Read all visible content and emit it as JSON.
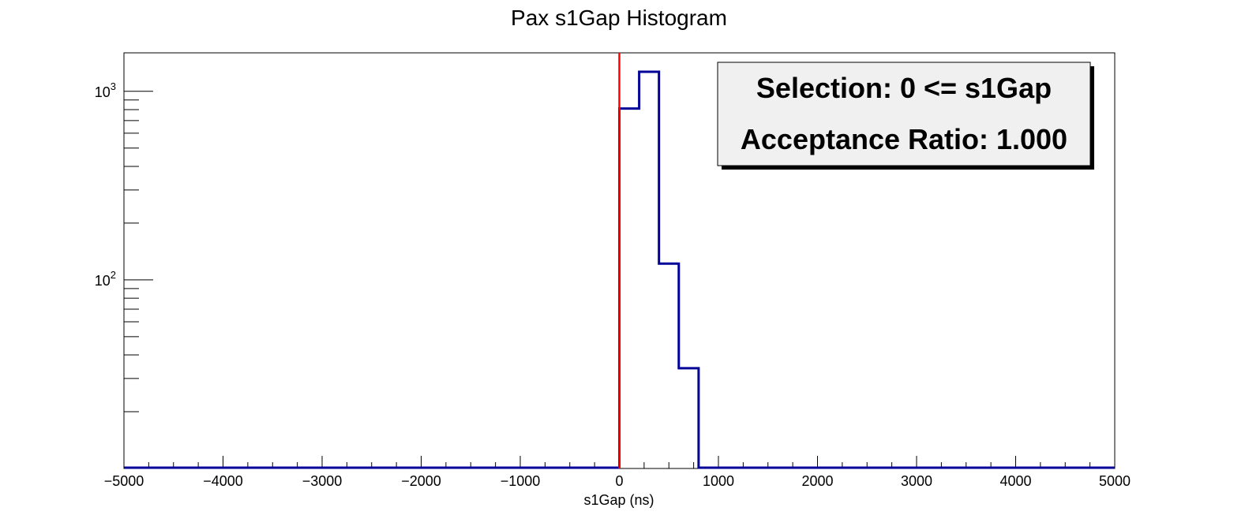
{
  "chart_data": {
    "type": "histogram",
    "title": "Pax s1Gap Histogram",
    "xlabel": "s1Gap (ns)",
    "ylabel": "",
    "xlim": [
      -5000,
      5000
    ],
    "ylim": [
      10,
      1600
    ],
    "y_scale": "log",
    "x_ticks": [
      -5000,
      -4000,
      -3000,
      -2000,
      -1000,
      0,
      1000,
      2000,
      3000,
      4000,
      5000
    ],
    "x_tick_labels": [
      "−5000",
      "−4000",
      "−3000",
      "−2000",
      "−1000",
      "0",
      "1000",
      "2000",
      "3000",
      "4000",
      "5000"
    ],
    "y_ticks": [
      {
        "base": "10",
        "exp": "2",
        "value": 100
      },
      {
        "base": "10",
        "exp": "3",
        "value": 1000
      }
    ],
    "bins": {
      "edges": [
        0,
        200,
        400,
        600,
        800
      ],
      "counts": [
        810,
        1270,
        122,
        34
      ]
    },
    "series_color": "#000099",
    "cut_line": {
      "x": 0,
      "color": "#ff0000"
    },
    "legend_placement": "top-right",
    "stats_box": {
      "line1": "Selection: 0 <= s1Gap",
      "line2": "Acceptance Ratio: 1.000",
      "fill": "#f0f0f0"
    },
    "grid": false
  }
}
